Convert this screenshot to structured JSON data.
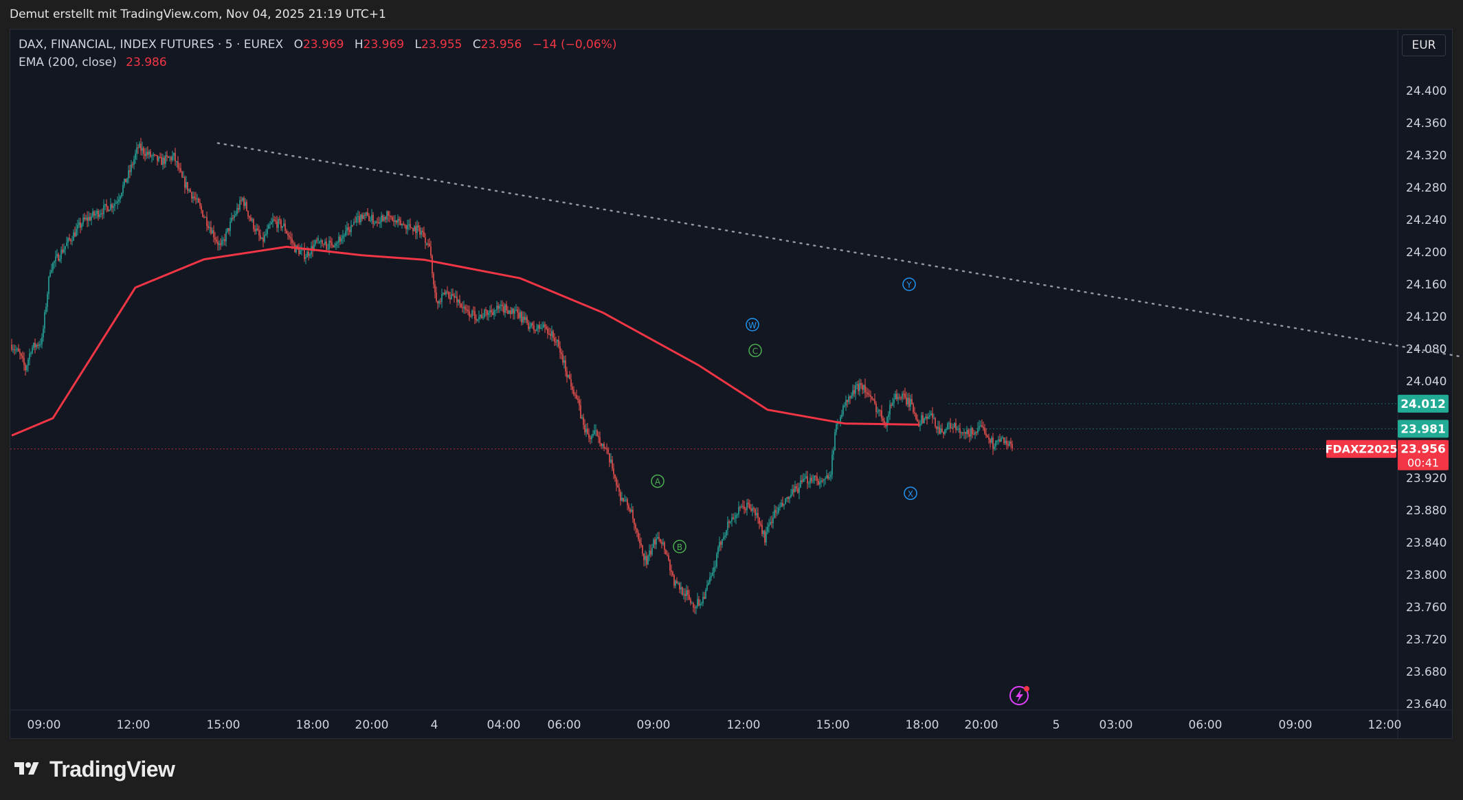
{
  "header": {
    "attribution": "Demut erstellt mit TradingView.com, Nov 04, 2025 21:19 UTC+1"
  },
  "legend": {
    "symbol": "DAX, FINANCIAL, INDEX FUTURES · 5 · EUREX",
    "open_label": "O",
    "open": "23.969",
    "high_label": "H",
    "high": "23.969",
    "low_label": "L",
    "low": "23.955",
    "close_label": "C",
    "close": "23.956",
    "change": "−14 (−0,06%)",
    "ema_label": "EMA (200, close)",
    "ema_value": "23.986"
  },
  "currency": "EUR",
  "brand": {
    "name": "TradingView"
  },
  "colors": {
    "up": "#26a69a",
    "down": "#ef5350",
    "ema": "#f23645",
    "bg": "#131722",
    "grid": "#2a2e39",
    "trend": "#9598a1",
    "wave_blue": "#2196f3",
    "wave_green": "#4caf50"
  },
  "chart_data": {
    "type": "candlestick",
    "price_axis": {
      "min": 23.62,
      "max": 24.44,
      "ticks": [
        "24.400",
        "24.360",
        "24.320",
        "24.280",
        "24.240",
        "24.200",
        "24.160",
        "24.120",
        "24.080",
        "24.040",
        "23.920",
        "23.880",
        "23.840",
        "23.800",
        "23.760",
        "23.720",
        "23.680",
        "23.640"
      ]
    },
    "time_axis": {
      "labels": [
        "09:00",
        "12:00",
        "15:00",
        "18:00",
        "20:00",
        "4",
        "04:00",
        "06:00",
        "09:00",
        "12:00",
        "15:00",
        "18:00",
        "20:00",
        "5",
        "03:00",
        "06:00",
        "09:00",
        "12:00"
      ]
    },
    "price_labels": [
      {
        "text": "24.012",
        "price": 24.012,
        "color": "#22ab94"
      },
      {
        "text": "23.981",
        "price": 23.981,
        "color": "#22ab94"
      },
      {
        "text": "23.956",
        "sub": "00:41",
        "price": 23.956,
        "color": "#f23645"
      }
    ],
    "symbol_badge": "FDAXZ2025",
    "ema_path": [
      [
        0,
        23.955,
        23.99
      ],
      [
        30,
        23.99,
        23.998
      ],
      [
        90,
        24.14,
        24.172
      ],
      [
        140,
        24.182,
        24.2
      ],
      [
        200,
        24.205,
        24.208
      ],
      [
        255,
        24.198,
        24.194
      ],
      [
        300,
        24.191,
        24.19
      ],
      [
        370,
        24.17,
        24.165
      ],
      [
        430,
        24.13,
        24.12
      ],
      [
        500,
        24.064,
        24.055
      ],
      [
        550,
        24.008,
        24.001
      ],
      [
        606,
        23.99,
        23.985
      ],
      [
        660,
        23.986,
        23.986
      ]
    ],
    "trendline": [
      [
        150,
        24.335
      ],
      [
        1418,
        23.964
      ]
    ],
    "wave_labels": [
      {
        "text": "W",
        "bar": 539,
        "price": 24.11,
        "color": "blue"
      },
      {
        "text": "C",
        "bar": 541,
        "price": 24.078,
        "color": "green"
      },
      {
        "text": "Y",
        "bar": 653,
        "price": 24.16,
        "color": "blue"
      },
      {
        "text": "A",
        "bar": 470,
        "price": 23.916,
        "color": "green"
      },
      {
        "text": "B",
        "bar": 486,
        "price": 23.835,
        "color": "green"
      },
      {
        "text": "X",
        "bar": 654,
        "price": 23.901,
        "color": "blue"
      }
    ],
    "candles_path": [
      [
        0,
        24.085
      ],
      [
        6,
        24.072
      ],
      [
        10,
        24.055
      ],
      [
        14,
        24.08
      ],
      [
        22,
        24.09
      ],
      [
        28,
        24.18
      ],
      [
        40,
        24.21
      ],
      [
        52,
        24.238
      ],
      [
        64,
        24.25
      ],
      [
        76,
        24.262
      ],
      [
        86,
        24.3
      ],
      [
        92,
        24.33
      ],
      [
        100,
        24.32
      ],
      [
        108,
        24.312
      ],
      [
        118,
        24.318
      ],
      [
        124,
        24.29
      ],
      [
        134,
        24.264
      ],
      [
        144,
        24.232
      ],
      [
        152,
        24.205
      ],
      [
        160,
        24.238
      ],
      [
        168,
        24.266
      ],
      [
        174,
        24.24
      ],
      [
        182,
        24.212
      ],
      [
        190,
        24.238
      ],
      [
        198,
        24.232
      ],
      [
        206,
        24.205
      ],
      [
        214,
        24.196
      ],
      [
        222,
        24.212
      ],
      [
        230,
        24.208
      ],
      [
        240,
        24.218
      ],
      [
        248,
        24.232
      ],
      [
        256,
        24.248
      ],
      [
        264,
        24.238
      ],
      [
        272,
        24.246
      ],
      [
        280,
        24.236
      ],
      [
        290,
        24.232
      ],
      [
        298,
        24.226
      ],
      [
        304,
        24.208
      ],
      [
        306,
        24.175
      ],
      [
        310,
        24.135
      ],
      [
        316,
        24.15
      ],
      [
        324,
        24.142
      ],
      [
        330,
        24.126
      ],
      [
        340,
        24.12
      ],
      [
        350,
        24.128
      ],
      [
        360,
        24.13
      ],
      [
        370,
        24.12
      ],
      [
        380,
        24.104
      ],
      [
        388,
        24.108
      ],
      [
        396,
        24.09
      ],
      [
        400,
        24.072
      ],
      [
        404,
        24.05
      ],
      [
        410,
        24.025
      ],
      [
        416,
        23.985
      ],
      [
        420,
        23.97
      ],
      [
        426,
        23.976
      ],
      [
        432,
        23.954
      ],
      [
        438,
        23.928
      ],
      [
        442,
        23.9
      ],
      [
        450,
        23.882
      ],
      [
        456,
        23.84
      ],
      [
        462,
        23.815
      ],
      [
        470,
        23.852
      ],
      [
        476,
        23.83
      ],
      [
        482,
        23.79
      ],
      [
        490,
        23.778
      ],
      [
        496,
        23.762
      ],
      [
        502,
        23.768
      ],
      [
        510,
        23.8
      ],
      [
        516,
        23.842
      ],
      [
        522,
        23.866
      ],
      [
        530,
        23.88
      ],
      [
        536,
        23.886
      ],
      [
        542,
        23.874
      ],
      [
        548,
        23.845
      ],
      [
        554,
        23.874
      ],
      [
        560,
        23.884
      ],
      [
        568,
        23.9
      ],
      [
        576,
        23.915
      ],
      [
        584,
        23.922
      ],
      [
        590,
        23.912
      ],
      [
        596,
        23.93
      ],
      [
        600,
        23.985
      ],
      [
        606,
        24.01
      ],
      [
        612,
        24.025
      ],
      [
        618,
        24.038
      ],
      [
        624,
        24.02
      ],
      [
        630,
        24.005
      ],
      [
        636,
        23.99
      ],
      [
        642,
        24.022
      ],
      [
        648,
        24.02
      ],
      [
        654,
        24.012
      ],
      [
        660,
        23.99
      ],
      [
        668,
        23.998
      ],
      [
        676,
        23.978
      ],
      [
        684,
        23.986
      ],
      [
        692,
        23.972
      ],
      [
        700,
        23.978
      ],
      [
        708,
        23.98
      ],
      [
        714,
        23.962
      ],
      [
        722,
        23.968
      ],
      [
        728,
        23.956
      ]
    ]
  }
}
